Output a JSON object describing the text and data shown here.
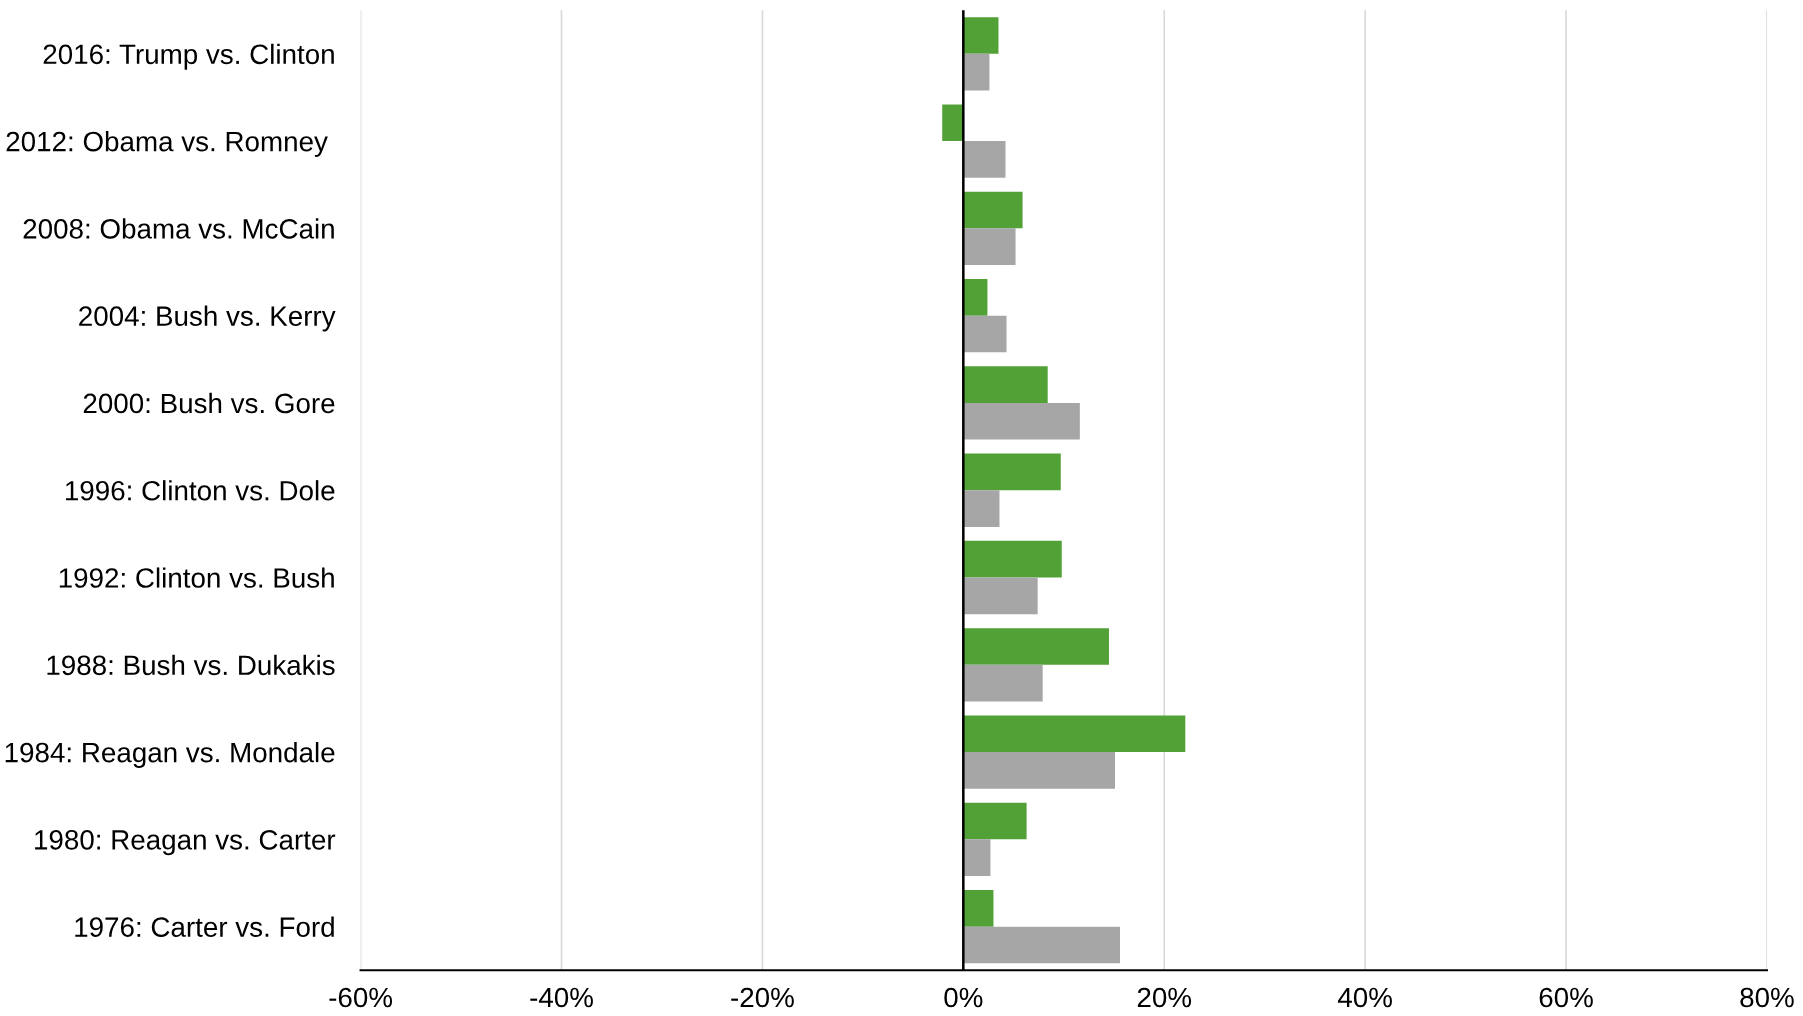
{
  "chart_data": {
    "type": "bar",
    "orientation": "horizontal",
    "categories": [
      "2016: Trump vs. Clinton",
      "2012: Obama vs. Romney ",
      "2008: Obama vs. McCain",
      "2004: Bush vs. Kerry",
      "2000: Bush vs. Gore",
      "1996: Clinton vs. Dole",
      "1992: Clinton vs. Bush",
      "1988: Bush vs. Dukakis",
      "1984: Reagan vs. Mondale",
      "1980: Reagan vs. Carter",
      "1976: Carter vs. Ford"
    ],
    "series": [
      {
        "color": "#52a136",
        "values": [
          3.5,
          -2.1,
          5.9,
          2.4,
          8.4,
          9.7,
          9.8,
          14.5,
          22.1,
          6.3,
          3.0
        ]
      },
      {
        "color": "#a6a6a6",
        "values": [
          2.6,
          4.2,
          5.2,
          4.3,
          11.6,
          3.6,
          7.4,
          7.9,
          15.1,
          2.7,
          15.6
        ]
      }
    ],
    "xlim": [
      -60,
      80
    ],
    "xticks": [
      {
        "value": -60,
        "label": "-60%"
      },
      {
        "value": -40,
        "label": "-40%"
      },
      {
        "value": -20,
        "label": "-20%"
      },
      {
        "value": 0,
        "label": "0%"
      },
      {
        "value": 20,
        "label": "20%"
      },
      {
        "value": 40,
        "label": "40%"
      },
      {
        "value": 60,
        "label": "60%"
      },
      {
        "value": 80,
        "label": "80%"
      }
    ],
    "grid": "x",
    "ref_lines": [
      {
        "axis": "x",
        "value": 0,
        "color": "#000000"
      }
    ],
    "legend": false
  }
}
